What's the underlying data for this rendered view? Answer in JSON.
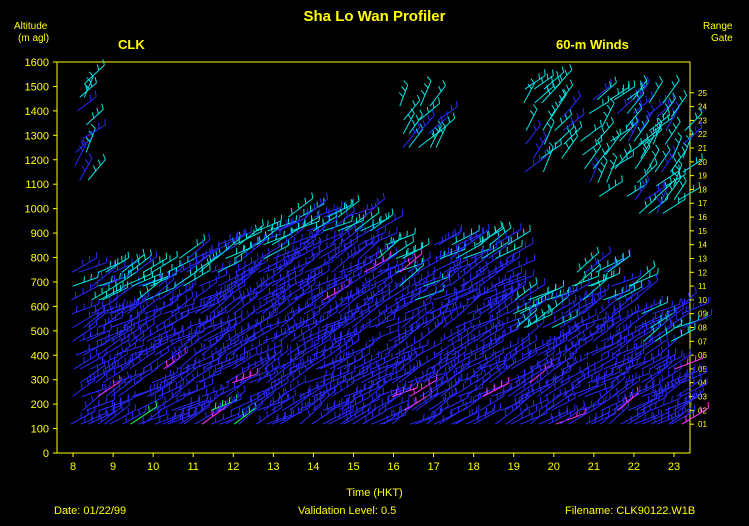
{
  "header": {
    "title": "Sha Lo Wan Profiler",
    "left_label_1": "Altitude",
    "left_label_2": "(m agl)",
    "right_label_1": "Range",
    "right_label_2": "Gate",
    "station": "CLK",
    "mode": "60-m Winds"
  },
  "footer": {
    "date": "Date:  01/22/99",
    "validation": "Validation Level:  0.5",
    "filename": "Filename:  CLK90122.W1B"
  },
  "chart_data": {
    "type": "scatter",
    "xlabel": "Time (HKT)",
    "ylabel": "Altitude (m agl)",
    "xlim": [
      7.6,
      23.4
    ],
    "ylim": [
      0,
      1600
    ],
    "x_ticks": [
      8,
      9,
      10,
      11,
      12,
      13,
      14,
      15,
      16,
      17,
      18,
      19,
      20,
      21,
      22,
      23
    ],
    "y_ticks": [
      0,
      100,
      200,
      300,
      400,
      500,
      600,
      700,
      800,
      900,
      1000,
      1100,
      1200,
      1300,
      1400,
      1500,
      1600
    ],
    "range_gates": [
      "01",
      "02",
      "03",
      "04",
      "05",
      "06",
      "07",
      "08",
      "09",
      "10",
      "11",
      "12",
      "13",
      "14",
      "15",
      "16",
      "17",
      "18",
      "19",
      "20",
      "21",
      "22",
      "23",
      "24",
      "25"
    ],
    "colors": {
      "axes": "#ffff00",
      "barb_main": "#2a2aff",
      "barb_upper": "#00e5e5",
      "barb_strong": "#ff33ff",
      "barb_minor": "#00ff66"
    },
    "wind_barbs": [
      {
        "time": 8.2,
        "alt": 1450,
        "color": "cyan"
      },
      {
        "time": 8.2,
        "alt": 1200,
        "color": "cyan"
      },
      {
        "time": 8.2,
        "alt": 1080,
        "color": "cyan"
      },
      {
        "time": 10.0,
        "alt": 900,
        "color": "cyan"
      },
      {
        "time": 12.0,
        "alt": 880,
        "color": "cyan"
      },
      {
        "time": 13.5,
        "alt": 720,
        "color": "magenta"
      },
      {
        "time": 13.2,
        "alt": 460,
        "color": "magenta"
      },
      {
        "time": 16.3,
        "alt": 1350,
        "color": "cyan"
      },
      {
        "time": 16.9,
        "alt": 960,
        "color": "cyan"
      },
      {
        "time": 19.5,
        "alt": 1400,
        "color": "cyan"
      },
      {
        "time": 20.5,
        "alt": 1300,
        "color": "cyan"
      },
      {
        "time": 21.5,
        "alt": 1350,
        "color": "cyan"
      },
      {
        "time": 22.3,
        "alt": 1300,
        "color": "cyan"
      },
      {
        "time": 22.8,
        "alt": 1100,
        "color": "cyan"
      },
      {
        "time": 21.0,
        "alt": 760,
        "color": "cyan"
      },
      {
        "time": 20.0,
        "alt": 460,
        "color": "blue"
      },
      {
        "time": 11.5,
        "alt": 350,
        "color": "magenta"
      },
      {
        "time": 17.8,
        "alt": 300,
        "color": "magenta"
      }
    ]
  }
}
